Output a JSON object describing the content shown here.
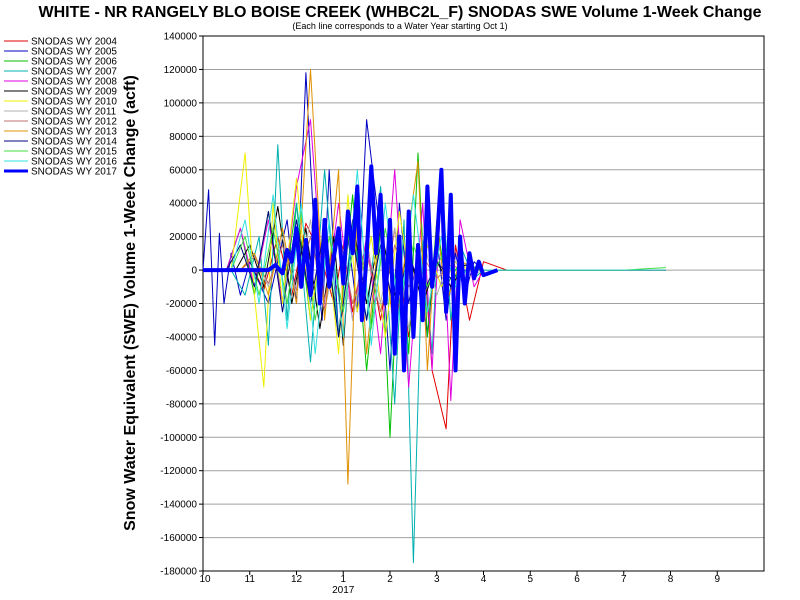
{
  "chart_data": {
    "type": "line",
    "title": "WHITE - NR RANGELY BLO BOISE CREEK (WHBC2L_F) SNODAS SWE Volume 1-Week Change",
    "subtitle": "(Each line corresponds to a Water Year starting Oct 1)",
    "ylabel": "Snow Water Equivalent (SWE) Volume 1-Week Change (acft)",
    "ylim": [
      -180000,
      140000
    ],
    "yticks": [
      140000,
      120000,
      100000,
      80000,
      60000,
      40000,
      20000,
      0,
      -20000,
      -40000,
      -60000,
      -80000,
      -100000,
      -120000,
      -140000,
      -160000,
      -180000
    ],
    "xlabel": "",
    "x_tick_labels": [
      "10",
      "11",
      "12",
      "1",
      "2",
      "3",
      "4",
      "5",
      "6",
      "7",
      "8",
      "9"
    ],
    "x_year_label": "2017",
    "grid": "horizontal",
    "legend_position": "left",
    "series": [
      {
        "name": "SNODAS WY 2004",
        "color": "#e00000",
        "width": 1,
        "x": [
          0,
          0.8,
          1.0,
          1.3,
          1.6,
          1.9,
          2.2,
          2.5,
          2.8,
          3.0,
          3.2,
          3.5,
          3.8,
          4.1,
          4.4,
          4.7,
          4.9,
          5.2,
          5.4,
          5.7,
          6.0,
          6.5,
          7.0,
          8.0,
          9.0,
          9.9
        ],
        "y": [
          0,
          0,
          5000,
          -12000,
          20000,
          -15000,
          28000,
          10000,
          -20000,
          15000,
          -25000,
          18000,
          -30000,
          25000,
          -40000,
          20000,
          -60000,
          -95000,
          15000,
          -30000,
          5000,
          0,
          0,
          0,
          0,
          0
        ]
      },
      {
        "name": "SNODAS WY 2005",
        "color": "#0000c0",
        "width": 1,
        "x": [
          0,
          0.12,
          0.25,
          0.35,
          0.45,
          0.6,
          0.8,
          1.0,
          1.4,
          1.8,
          2.0,
          2.2,
          2.4,
          2.55,
          2.7,
          2.9,
          3.1,
          3.3,
          3.5,
          3.8,
          4.0,
          4.2,
          4.4,
          4.6,
          4.8,
          5.0,
          5.2,
          5.4,
          5.6,
          5.8,
          6.0,
          6.5,
          7.0,
          8.0,
          9.0,
          9.9
        ],
        "y": [
          0,
          48000,
          -45000,
          22000,
          -20000,
          10000,
          -15000,
          5000,
          -20000,
          30000,
          -20000,
          118000,
          10000,
          -30000,
          60000,
          -40000,
          20000,
          -25000,
          90000,
          20000,
          -60000,
          40000,
          -20000,
          10000,
          -40000,
          20000,
          -30000,
          10000,
          -15000,
          5000,
          0,
          0,
          0,
          0,
          0,
          0
        ]
      },
      {
        "name": "SNODAS WY 2006",
        "color": "#00c000",
        "width": 1,
        "x": [
          0,
          0.5,
          0.8,
          1.1,
          1.4,
          1.7,
          2.0,
          2.3,
          2.6,
          2.9,
          3.2,
          3.5,
          3.8,
          4.0,
          4.2,
          4.4,
          4.6,
          4.8,
          5.0,
          5.2,
          5.5,
          6.0,
          7.0,
          8.0,
          9.0,
          9.9
        ],
        "y": [
          0,
          0,
          25000,
          -15000,
          35000,
          -20000,
          40000,
          -30000,
          30000,
          -40000,
          45000,
          -60000,
          25000,
          -100000,
          20000,
          -50000,
          70000,
          -40000,
          30000,
          -10000,
          5000,
          0,
          0,
          0,
          0,
          0
        ]
      },
      {
        "name": "SNODAS WY 2007",
        "color": "#00b0b0",
        "width": 1,
        "x": [
          0,
          0.6,
          0.9,
          1.2,
          1.4,
          1.6,
          1.8,
          2.0,
          2.3,
          2.6,
          2.9,
          3.2,
          3.5,
          3.8,
          4.1,
          4.3,
          4.5,
          4.7,
          4.9,
          5.1,
          5.3,
          5.5,
          5.8,
          6.0,
          7.0,
          8.0,
          9.0,
          9.9
        ],
        "y": [
          0,
          0,
          -15000,
          20000,
          -45000,
          75000,
          -30000,
          40000,
          -55000,
          60000,
          -40000,
          25000,
          -30000,
          50000,
          -80000,
          30000,
          -175000,
          20000,
          -50000,
          60000,
          -30000,
          15000,
          -5000,
          0,
          0,
          0,
          0,
          0
        ]
      },
      {
        "name": "SNODAS WY 2008",
        "color": "#e000e0",
        "width": 1,
        "x": [
          0,
          0.5,
          0.8,
          1.1,
          1.4,
          1.7,
          2.0,
          2.3,
          2.6,
          2.9,
          3.2,
          3.5,
          3.8,
          4.1,
          4.4,
          4.7,
          4.9,
          5.1,
          5.3,
          5.5,
          5.8,
          6.0,
          7.0,
          8.0,
          9.0,
          9.9
        ],
        "y": [
          0,
          0,
          25000,
          -10000,
          30000,
          -20000,
          50000,
          90000,
          -25000,
          40000,
          -30000,
          20000,
          -50000,
          60000,
          -70000,
          40000,
          -60000,
          50000,
          -78000,
          30000,
          -10000,
          0,
          0,
          0,
          0,
          0
        ]
      },
      {
        "name": "SNODAS WY 2009",
        "color": "#000000",
        "width": 1,
        "x": [
          0,
          0.7,
          1.0,
          1.3,
          1.6,
          1.9,
          2.2,
          2.5,
          2.8,
          3.0,
          3.2,
          3.5,
          3.8,
          4.1,
          4.4,
          4.7,
          5.0,
          5.3,
          5.6,
          6.0,
          7.0,
          8.0,
          9.0,
          9.9
        ],
        "y": [
          0,
          0,
          15000,
          -10000,
          38000,
          -20000,
          25000,
          -35000,
          20000,
          -45000,
          30000,
          -20000,
          25000,
          -15000,
          10000,
          -20000,
          5000,
          -10000,
          3000,
          0,
          0,
          0,
          0,
          0
        ]
      },
      {
        "name": "SNODAS WY 2010",
        "color": "#f0f000",
        "width": 1,
        "x": [
          0,
          0.6,
          0.9,
          1.1,
          1.3,
          1.5,
          1.7,
          2.0,
          2.3,
          2.6,
          2.9,
          3.1,
          3.3,
          3.6,
          3.9,
          4.2,
          4.5,
          4.8,
          5.1,
          5.4,
          5.7,
          6.0,
          7.0,
          8.0,
          9.0,
          9.9
        ],
        "y": [
          0,
          0,
          70000,
          -15000,
          -70000,
          40000,
          -20000,
          55000,
          -30000,
          30000,
          -50000,
          45000,
          -25000,
          20000,
          -40000,
          35000,
          -20000,
          15000,
          -10000,
          5000,
          0,
          0,
          0,
          0,
          0,
          0
        ]
      },
      {
        "name": "SNODAS WY 2011",
        "color": "#b0b0b0",
        "width": 1,
        "x": [
          0,
          0.8,
          1.1,
          1.4,
          1.7,
          2.0,
          2.3,
          2.6,
          2.9,
          3.2,
          3.5,
          3.8,
          4.1,
          4.4,
          4.7,
          5.0,
          5.3,
          5.6,
          6.0,
          7.0,
          8.0,
          9.0,
          9.9
        ],
        "y": [
          0,
          0,
          10000,
          -10000,
          20000,
          -15000,
          30000,
          -25000,
          20000,
          -30000,
          15000,
          -20000,
          25000,
          -35000,
          20000,
          -15000,
          10000,
          -5000,
          0,
          0,
          0,
          0,
          0
        ]
      },
      {
        "name": "SNODAS WY 2012",
        "color": "#c07070",
        "width": 1,
        "x": [
          0,
          0.8,
          1.1,
          1.4,
          1.7,
          2.0,
          2.3,
          2.6,
          2.9,
          3.2,
          3.5,
          3.8,
          4.1,
          4.4,
          4.7,
          5.0,
          5.3,
          5.6,
          6.0,
          7.0,
          8.0,
          9.0,
          9.9
        ],
        "y": [
          0,
          0,
          8000,
          -8000,
          15000,
          -12000,
          20000,
          -18000,
          25000,
          -20000,
          10000,
          -25000,
          15000,
          -10000,
          8000,
          -5000,
          3000,
          0,
          0,
          0,
          0,
          0,
          0
        ]
      },
      {
        "name": "SNODAS WY 2013",
        "color": "#e09000",
        "width": 1,
        "x": [
          0,
          0.8,
          1.1,
          1.4,
          1.7,
          2.0,
          2.3,
          2.6,
          2.9,
          3.1,
          3.3,
          3.5,
          3.8,
          4.1,
          4.4,
          4.6,
          4.8,
          5.0,
          5.2,
          5.5,
          6.0,
          7.0,
          8.0,
          9.0,
          9.9
        ],
        "y": [
          0,
          0,
          10000,
          -15000,
          25000,
          -20000,
          120000,
          -30000,
          60000,
          -128000,
          40000,
          -50000,
          30000,
          -40000,
          25000,
          65000,
          -60000,
          30000,
          -20000,
          5000,
          0,
          0,
          0,
          0,
          0
        ]
      },
      {
        "name": "SNODAS WY 2014",
        "color": "#000080",
        "width": 1,
        "x": [
          0,
          0.5,
          0.8,
          1.1,
          1.4,
          1.7,
          2.0,
          2.3,
          2.6,
          2.9,
          3.2,
          3.5,
          3.8,
          4.1,
          4.4,
          4.7,
          5.0,
          5.3,
          5.6,
          6.0,
          7.0,
          8.0,
          9.0,
          9.9
        ],
        "y": [
          0,
          0,
          15000,
          -10000,
          35000,
          -25000,
          30000,
          -20000,
          25000,
          -40000,
          20000,
          -30000,
          15000,
          -25000,
          10000,
          -15000,
          5000,
          -5000,
          0,
          0,
          0,
          0,
          0,
          0
        ]
      },
      {
        "name": "SNODAS WY 2015",
        "color": "#40e040",
        "width": 1,
        "x": [
          0,
          0.6,
          0.9,
          1.2,
          1.5,
          1.8,
          2.1,
          2.4,
          2.7,
          3.0,
          3.3,
          3.6,
          3.9,
          4.2,
          4.5,
          4.8,
          5.1,
          5.4,
          5.7,
          6.0,
          7.0,
          8.0,
          9.0,
          9.9
        ],
        "y": [
          0,
          0,
          20000,
          -15000,
          25000,
          -20000,
          35000,
          -30000,
          20000,
          -25000,
          30000,
          -35000,
          25000,
          -20000,
          15000,
          -10000,
          8000,
          -3000,
          0,
          0,
          0,
          0,
          0,
          1500
        ]
      },
      {
        "name": "SNODAS WY 2016",
        "color": "#30e0e0",
        "width": 1,
        "x": [
          0,
          0.6,
          0.9,
          1.2,
          1.5,
          1.8,
          2.1,
          2.4,
          2.7,
          3.0,
          3.3,
          3.6,
          3.9,
          4.2,
          4.5,
          4.8,
          5.1,
          5.4,
          5.7,
          6.0,
          7.0,
          8.0,
          9.0,
          9.9
        ],
        "y": [
          0,
          0,
          30000,
          -20000,
          45000,
          -35000,
          40000,
          -50000,
          30000,
          -40000,
          60000,
          -45000,
          40000,
          -30000,
          45000,
          -25000,
          20000,
          -10000,
          3000,
          0,
          0,
          0,
          0,
          0
        ]
      },
      {
        "name": "SNODAS WY 2017",
        "color": "#0000ff",
        "width": 4,
        "x": [
          0,
          0.4,
          0.8,
          1.1,
          1.4,
          1.55,
          1.7,
          1.8,
          1.9,
          2.0,
          2.1,
          2.2,
          2.3,
          2.4,
          2.5,
          2.6,
          2.7,
          2.8,
          2.9,
          3.0,
          3.1,
          3.2,
          3.3,
          3.4,
          3.5,
          3.6,
          3.7,
          3.8,
          3.9,
          4.0,
          4.1,
          4.2,
          4.3,
          4.4,
          4.5,
          4.6,
          4.7,
          4.8,
          4.9,
          5.0,
          5.1,
          5.2,
          5.3,
          5.4,
          5.5,
          5.6,
          5.7,
          5.8,
          5.9,
          6.0,
          6.3
        ],
        "y": [
          0,
          0,
          0,
          0,
          0,
          3000,
          -2000,
          12000,
          5000,
          25000,
          -10000,
          18000,
          -15000,
          42000,
          -20000,
          30000,
          -10000,
          8000,
          25000,
          -8000,
          35000,
          10000,
          50000,
          -30000,
          8000,
          62000,
          10000,
          45000,
          -20000,
          30000,
          -50000,
          20000,
          -60000,
          35000,
          -40000,
          15000,
          -30000,
          50000,
          -10000,
          15000,
          60000,
          -25000,
          45000,
          -60000,
          20000,
          -20000,
          10000,
          -5000,
          5000,
          -3000,
          0
        ]
      }
    ]
  }
}
